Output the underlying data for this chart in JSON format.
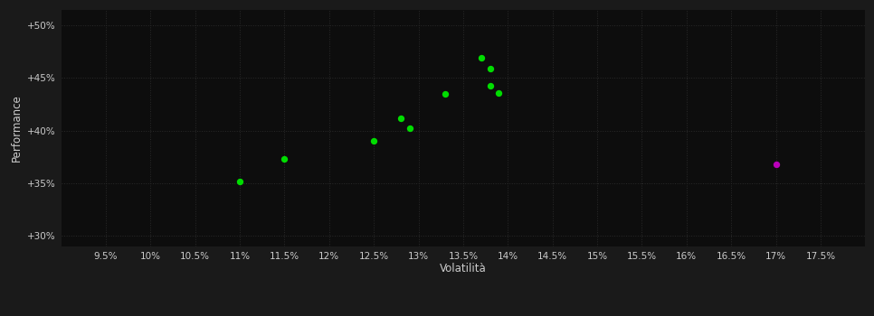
{
  "background_color": "#1a1a1a",
  "plot_bg_color": "#0d0d0d",
  "grid_color": "#2a2a2a",
  "text_color": "#cccccc",
  "xlabel": "Volatilità",
  "ylabel": "Performance",
  "xlim": [
    0.09,
    0.18
  ],
  "ylim": [
    0.29,
    0.515
  ],
  "xticks": [
    0.095,
    0.1,
    0.105,
    0.11,
    0.115,
    0.12,
    0.125,
    0.13,
    0.135,
    0.14,
    0.145,
    0.15,
    0.155,
    0.16,
    0.165,
    0.17,
    0.175
  ],
  "xtick_labels": [
    "9.5%",
    "10%",
    "10.5%",
    "11%",
    "11.5%",
    "12%",
    "12.5%",
    "13%",
    "13.5%",
    "14%",
    "14.5%",
    "15%",
    "15.5%",
    "16%",
    "16.5%",
    "17%",
    "17.5%"
  ],
  "yticks": [
    0.3,
    0.35,
    0.4,
    0.45,
    0.5
  ],
  "ytick_labels": [
    "+30%",
    "+35%",
    "+40%",
    "+45%",
    "+50%"
  ],
  "green_points": [
    [
      0.11,
      0.352
    ],
    [
      0.115,
      0.373
    ],
    [
      0.125,
      0.39
    ],
    [
      0.128,
      0.412
    ],
    [
      0.129,
      0.402
    ],
    [
      0.133,
      0.435
    ],
    [
      0.137,
      0.469
    ],
    [
      0.138,
      0.459
    ],
    [
      0.138,
      0.443
    ],
    [
      0.139,
      0.436
    ]
  ],
  "magenta_points": [
    [
      0.17,
      0.368
    ]
  ],
  "green_color": "#00dd00",
  "magenta_color": "#bb00bb",
  "marker_size": 28,
  "font_size_ticks": 7.5,
  "font_size_axis": 8.5
}
